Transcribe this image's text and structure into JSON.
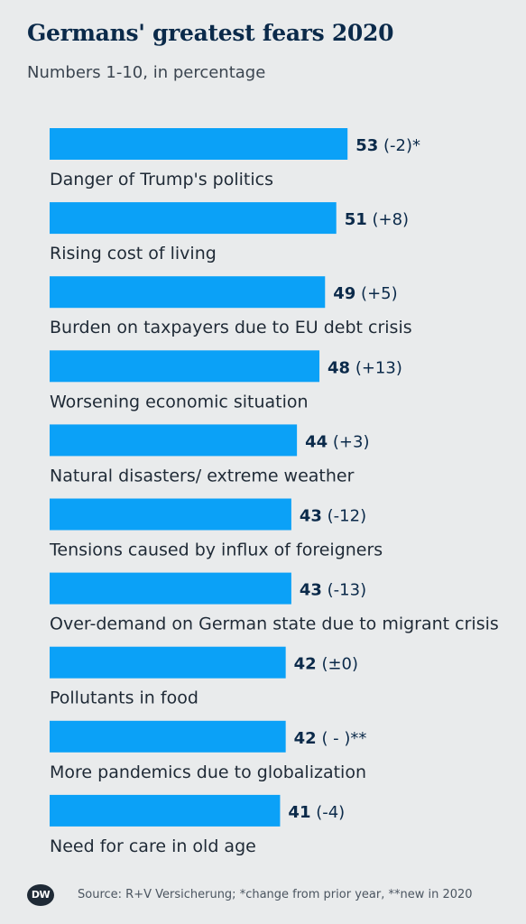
{
  "header": {
    "title": "Germans' greatest fears 2020",
    "subtitle": "Numbers 1-10, in percentage"
  },
  "chart_data": {
    "type": "bar",
    "orientation": "horizontal",
    "title": "Germans' greatest fears 2020",
    "subtitle": "Numbers 1-10, in percentage",
    "bar_color": "#0ba1f7",
    "xlim": [
      0,
      100
    ],
    "grid": false,
    "legend": "none",
    "categories": [
      "Danger of Trump's politics",
      "Rising cost of living",
      "Burden on taxpayers due to EU debt crisis",
      "Worsening economic situation",
      "Natural disasters/ extreme weather",
      "Tensions caused by influx of foreigners",
      "Over-demand on German state due to migrant crisis",
      "Pollutants in food",
      "More pandemics due to globalization",
      "Need for care in old age"
    ],
    "values": [
      53,
      51,
      49,
      48,
      44,
      43,
      43,
      42,
      42,
      41
    ],
    "changes": [
      "(-2)*",
      "(+8)",
      "(+5)",
      "(+13)",
      "(+3)",
      "(-12)",
      "(-13)",
      "(±0)",
      "( - )**",
      "(-4)"
    ]
  },
  "footer": {
    "logo_text": "DW",
    "source": "Source: R+V Versicherung; *change from prior year, **new in 2020"
  }
}
